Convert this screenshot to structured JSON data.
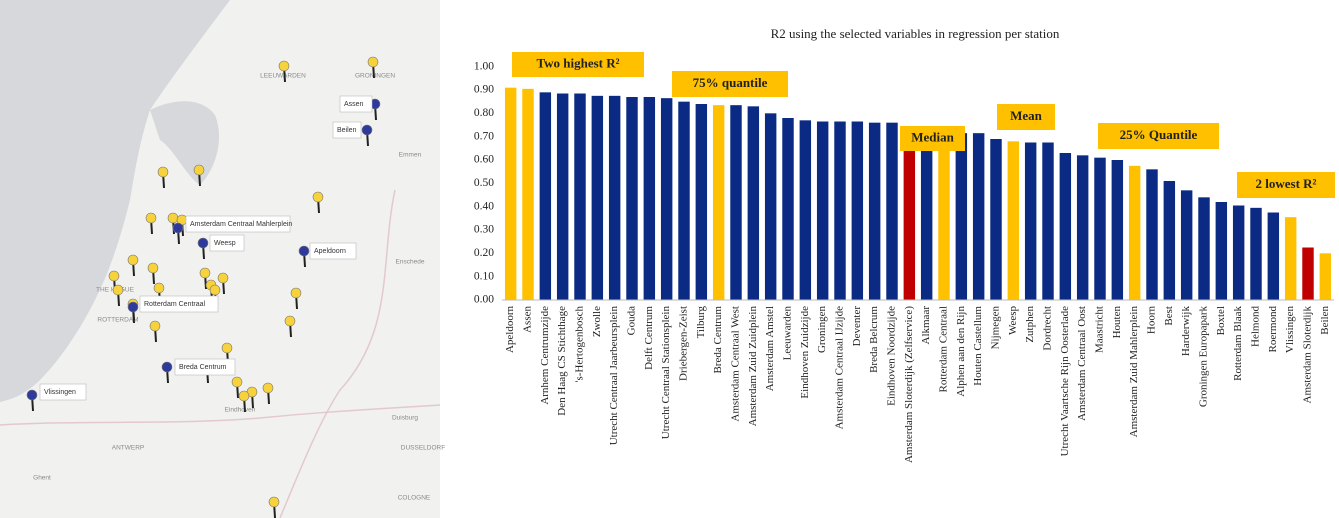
{
  "chart_data": {
    "type": "bar",
    "title": "R2 using the selected variables in regression per station",
    "categories": [
      "Apeldoorn",
      "Assen",
      "Arnhem Centrumzijde",
      "Den Haag CS Stichthage",
      "'s-Hertogenbosch",
      "Zwolle",
      "Utrecht Centraal Jaarbeursplein",
      "Gouda",
      "Delft Centrum",
      "Utrecht Centraal Stationsplein",
      "Driebergen-Zeist",
      "Tilburg",
      "Breda Centrum",
      "Amsterdam Centraal West",
      "Amsterdam Zuid Zuidplein",
      "Amsterdam Amstel",
      "Leeuwarden",
      "Eindhoven Zuidzijde",
      "Groningen",
      "Amsterdam Centraal IJzijde",
      "Deventer",
      "Breda Belcrum",
      "Eindhoven Noordzijde",
      "Amsterdam Sloterdijk (Zelfservice)",
      "Alkmaar",
      "Rotterdam Centraal",
      "Alphen aan den Rijn",
      "Houten Castellum",
      "Nijmegen",
      "Weesp",
      "Zutphen",
      "Dordrecht",
      "Utrecht Vaartsche Rijn Oosterlade",
      "Amsterdam Centraal Oost",
      "Maastricht",
      "Houten",
      "Amsterdam Zuid Mahlerplein",
      "Hoorn",
      "Best",
      "Harderwijk",
      "Groningen Europapark",
      "Boxtel",
      "Rotterdam Blaak",
      "Helmond",
      "Roermond",
      "Vlissingen",
      "Amsterdam Sloterdijk",
      "Beilen"
    ],
    "values": [
      0.91,
      0.905,
      0.89,
      0.885,
      0.885,
      0.875,
      0.875,
      0.87,
      0.87,
      0.865,
      0.85,
      0.84,
      0.835,
      0.835,
      0.83,
      0.8,
      0.78,
      0.77,
      0.765,
      0.765,
      0.765,
      0.76,
      0.76,
      0.73,
      0.73,
      0.725,
      0.715,
      0.715,
      0.69,
      0.68,
      0.675,
      0.675,
      0.63,
      0.62,
      0.61,
      0.6,
      0.575,
      0.56,
      0.51,
      0.47,
      0.44,
      0.42,
      0.405,
      0.395,
      0.375,
      0.355,
      0.225,
      0.2
    ],
    "colors": [
      "#ffc000",
      "#ffc000",
      "#0b2a84",
      "#0b2a84",
      "#0b2a84",
      "#0b2a84",
      "#0b2a84",
      "#0b2a84",
      "#0b2a84",
      "#0b2a84",
      "#0b2a84",
      "#0b2a84",
      "#ffc000",
      "#0b2a84",
      "#0b2a84",
      "#0b2a84",
      "#0b2a84",
      "#0b2a84",
      "#0b2a84",
      "#0b2a84",
      "#0b2a84",
      "#0b2a84",
      "#0b2a84",
      "#c00000",
      "#0b2a84",
      "#ffc000",
      "#0b2a84",
      "#0b2a84",
      "#0b2a84",
      "#ffc000",
      "#0b2a84",
      "#0b2a84",
      "#0b2a84",
      "#0b2a84",
      "#0b2a84",
      "#0b2a84",
      "#ffc000",
      "#0b2a84",
      "#0b2a84",
      "#0b2a84",
      "#0b2a84",
      "#0b2a84",
      "#0b2a84",
      "#0b2a84",
      "#0b2a84",
      "#ffc000",
      "#c00000",
      "#ffc000"
    ],
    "ylim": [
      0,
      1.05
    ],
    "yticks": [
      {
        "value": 0,
        "label": "0.00"
      },
      {
        "value": 0.1,
        "label": "0.10"
      },
      {
        "value": 0.2,
        "label": "0.20"
      },
      {
        "value": 0.3,
        "label": "0.30"
      },
      {
        "value": 0.4,
        "label": "0.40"
      },
      {
        "value": 0.5,
        "label": "0.50"
      },
      {
        "value": 0.6,
        "label": "0.60"
      },
      {
        "value": 0.7,
        "label": "0.70"
      },
      {
        "value": 0.8,
        "label": "0.80"
      },
      {
        "value": 0.9,
        "label": "0.90"
      },
      {
        "value": 1,
        "label": "1.00"
      }
    ],
    "annotations": [
      "Two highest R²",
      "75% quantile",
      "Median",
      "Mean",
      "25% Quantile",
      "2 lowest R²"
    ]
  },
  "map": {
    "callouts": [
      "Assen",
      "Beilen",
      "Amsterdam Centraal Mahlerplein",
      "Weesp",
      "Apeldoorn",
      "Rotterdam Centraal",
      "Breda Centrum",
      "Vlissingen"
    ],
    "places": [
      "LEEUWARDEN",
      "GRONINGEN",
      "THE HAGUE",
      "ROTTERDAM",
      "ANTWERP",
      "DUSSELDORF",
      "COLOGNE",
      "Eindhoven",
      "Enschede",
      "Emmen",
      "Duisburg",
      "Ghent"
    ]
  }
}
